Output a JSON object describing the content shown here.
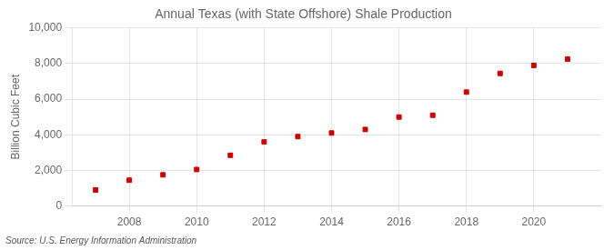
{
  "chart_data": {
    "type": "scatter",
    "title": "Annual Texas (with State Offshore) Shale Production",
    "ylabel": "Billion Cubic Feet",
    "source": "Source: U.S. Energy Information Administration",
    "x": [
      2007,
      2008,
      2009,
      2010,
      2011,
      2012,
      2013,
      2014,
      2015,
      2016,
      2017,
      2018,
      2019,
      2020,
      2021
    ],
    "values": [
      900,
      1450,
      1750,
      2050,
      2850,
      3600,
      3900,
      4100,
      4300,
      5000,
      5100,
      6400,
      7450,
      7900,
      8250
    ],
    "color": "#cc0000",
    "marker": "square",
    "xlim": [
      2006.3,
      2022.0
    ],
    "xticks": [
      2008,
      2010,
      2012,
      2014,
      2016,
      2018,
      2020
    ],
    "ylim": [
      0,
      10000
    ],
    "yticks": [
      0,
      {
        "value": 2000,
        "label": "2,000"
      },
      {
        "value": 4000,
        "label": "4,000"
      },
      {
        "value": 6000,
        "label": "6,000"
      },
      {
        "value": 8000,
        "label": "8,000"
      },
      {
        "value": 10000,
        "label": "10,000"
      }
    ],
    "grid": true
  }
}
